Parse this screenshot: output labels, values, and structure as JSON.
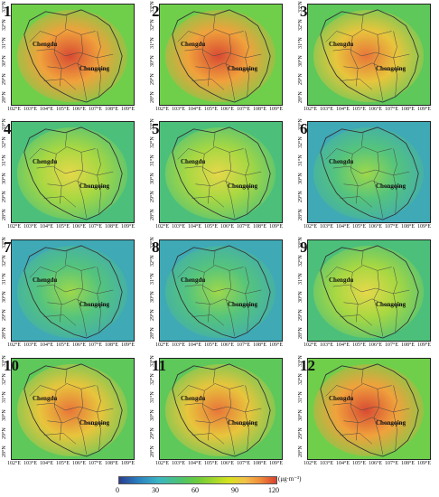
{
  "panels": [
    {
      "label": "1",
      "palette": "high"
    },
    {
      "label": "2",
      "palette": "high"
    },
    {
      "label": "3",
      "palette": "midhigh"
    },
    {
      "label": "4",
      "palette": "mid"
    },
    {
      "label": "5",
      "palette": "mid"
    },
    {
      "label": "6",
      "palette": "low"
    },
    {
      "label": "7",
      "palette": "low"
    },
    {
      "label": "8",
      "palette": "low"
    },
    {
      "label": "9",
      "palette": "mid"
    },
    {
      "label": "10",
      "palette": "midhigh"
    },
    {
      "label": "11",
      "palette": "midhigh"
    },
    {
      "label": "12",
      "palette": "high"
    }
  ],
  "cities": {
    "west": "Chengdu",
    "east": "Chongqing"
  },
  "x_ticks": [
    "102°E",
    "103°E",
    "104°E",
    "105°E",
    "106°E",
    "107°E",
    "108°E",
    "109°E"
  ],
  "y_ticks": [
    "28°N",
    "29°N",
    "30°N",
    "31°N",
    "32°N",
    "33°N"
  ],
  "colorbar": {
    "ticks": [
      "0",
      "30",
      "60",
      "90",
      "120"
    ],
    "unit": "(μg·m⁻³)",
    "colors": [
      "#2a3d8f",
      "#2a7fbf",
      "#3bb6c4",
      "#4fc46a",
      "#6ccc3a",
      "#d6e21e",
      "#f2c14a",
      "#f08a3a",
      "#d8412f"
    ]
  }
}
